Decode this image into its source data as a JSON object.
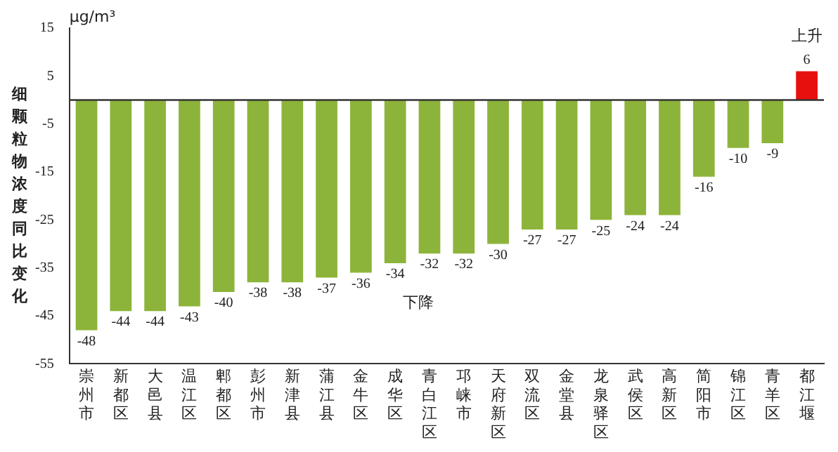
{
  "chart_data": {
    "type": "bar",
    "ylabel": "细颗粒物浓度同比变化",
    "categories": [
      "崇州市",
      "新都区",
      "大邑县",
      "温江区",
      "郫都区",
      "彭州市",
      "新津县",
      "蒲江县",
      "金牛区",
      "成华区",
      "青白江区",
      "邛崃市",
      "天府新区",
      "双流区",
      "金堂县",
      "龙泉驿区",
      "武侯区",
      "高新区",
      "简阳市",
      "锦江区",
      "青羊区",
      "都江堰"
    ],
    "values": [
      -48,
      -44,
      -44,
      -43,
      -40,
      -38,
      -38,
      -37,
      -36,
      -34,
      -32,
      -32,
      -30,
      -27,
      -27,
      -25,
      -24,
      -24,
      -16,
      -10,
      -9,
      6
    ],
    "colors": [
      "#8db43a",
      "#8db43a",
      "#8db43a",
      "#8db43a",
      "#8db43a",
      "#8db43a",
      "#8db43a",
      "#8db43a",
      "#8db43a",
      "#8db43a",
      "#8db43a",
      "#8db43a",
      "#8db43a",
      "#8db43a",
      "#8db43a",
      "#8db43a",
      "#8db43a",
      "#8db43a",
      "#8db43a",
      "#8db43a",
      "#8db43a",
      "#e8100e"
    ],
    "ylim": [
      -55,
      15
    ],
    "yticks": [
      15,
      5,
      -5,
      -15,
      -25,
      -35,
      -45,
      -55
    ],
    "grid": false,
    "legend": false,
    "data_labels": true,
    "annotations": [
      "μg/m³",
      "上升",
      "下降"
    ]
  }
}
